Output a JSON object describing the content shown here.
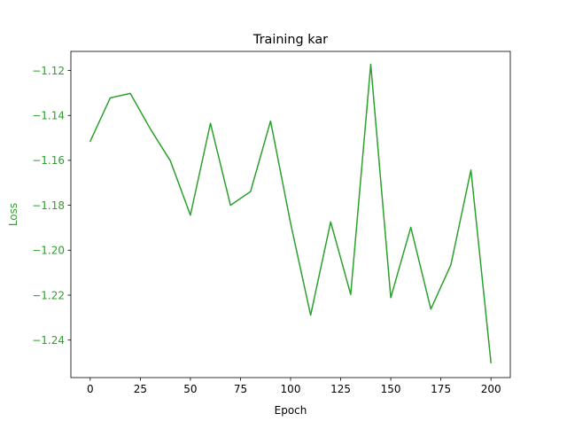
{
  "chart_data": {
    "type": "line",
    "title": "Training kar",
    "xlabel": "Epoch",
    "ylabel": "Loss",
    "xlim": [
      -9.65,
      209.65
    ],
    "ylim": [
      -1.2567,
      -1.1115
    ],
    "grid": false,
    "legend": "none",
    "colors": {
      "line": "#2ca02c",
      "ylabel": "#2ca02c",
      "yticks": "#2ca02c",
      "axes": "#000000",
      "background": "#ffffff"
    },
    "x_ticks": [
      0,
      25,
      50,
      75,
      100,
      125,
      150,
      175,
      200
    ],
    "x_tick_labels": [
      "0",
      "25",
      "50",
      "75",
      "100",
      "125",
      "150",
      "175",
      "200"
    ],
    "y_ticks": [
      -1.24,
      -1.22,
      -1.2,
      -1.18,
      -1.16,
      -1.14,
      -1.12
    ],
    "y_tick_labels": [
      "−1.24",
      "−1.22",
      "−1.20",
      "−1.18",
      "−1.16",
      "−1.14",
      "−1.12"
    ],
    "series": [
      {
        "x": [
          0,
          10,
          20,
          30,
          40,
          50,
          60,
          70,
          80,
          90,
          100,
          110,
          120,
          130,
          140,
          150,
          160,
          170,
          180,
          190,
          200
        ],
        "y": [
          -1.1515,
          -1.1322,
          -1.1302,
          -1.146,
          -1.1602,
          -1.1844,
          -1.1435,
          -1.18,
          -1.1739,
          -1.1425,
          -1.188,
          -1.2289,
          -1.1874,
          -1.2197,
          -1.1172,
          -1.2211,
          -1.1898,
          -1.2262,
          -1.2065,
          -1.1643,
          -1.25
        ]
      }
    ]
  }
}
